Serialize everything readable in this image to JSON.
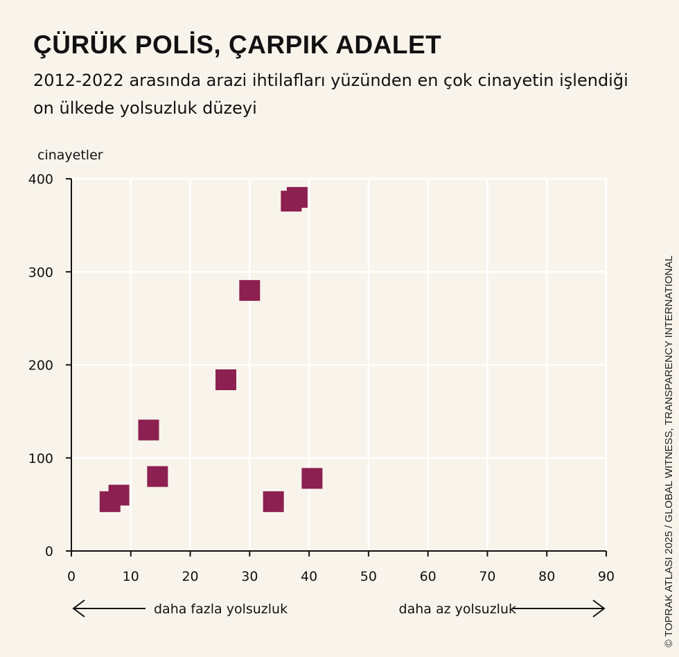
{
  "title": "ÇÜRÜK POLİS, ÇARPIK ADALET",
  "subtitle": "2012-2022 arasında arazi ihtilafları yüzünden en çok cinayetin işlendiği on ülkede yolsuzluk düzeyi",
  "credit": "© TOPRAK ATLASI 2025 / GLOBAL WITNESS, TRANSPARENCY INTERNATIONAL",
  "colors": {
    "marker": "#8c2050",
    "background": "#f8f4ec",
    "grid": "#ffffff"
  },
  "chart_data": {
    "type": "scatter",
    "ylabel": "cinayetler",
    "xlim": [
      0,
      90
    ],
    "ylim": [
      0,
      400
    ],
    "xticks": [
      0,
      10,
      20,
      30,
      40,
      50,
      60,
      70,
      80,
      90
    ],
    "yticks": [
      0,
      100,
      200,
      300,
      400
    ],
    "grid": true,
    "points": [
      {
        "x": 38,
        "y": 380
      },
      {
        "x": 37,
        "y": 376
      },
      {
        "x": 30,
        "y": 280
      },
      {
        "x": 26,
        "y": 184
      },
      {
        "x": 13,
        "y": 130
      },
      {
        "x": 14.5,
        "y": 80
      },
      {
        "x": 40.5,
        "y": 78
      },
      {
        "x": 8,
        "y": 60
      },
      {
        "x": 6.5,
        "y": 53
      },
      {
        "x": 34,
        "y": 53
      }
    ],
    "annotations": {
      "left_arrow_label": "daha fazla yolsuzluk",
      "right_arrow_label": "daha az yolsuzluk"
    }
  }
}
